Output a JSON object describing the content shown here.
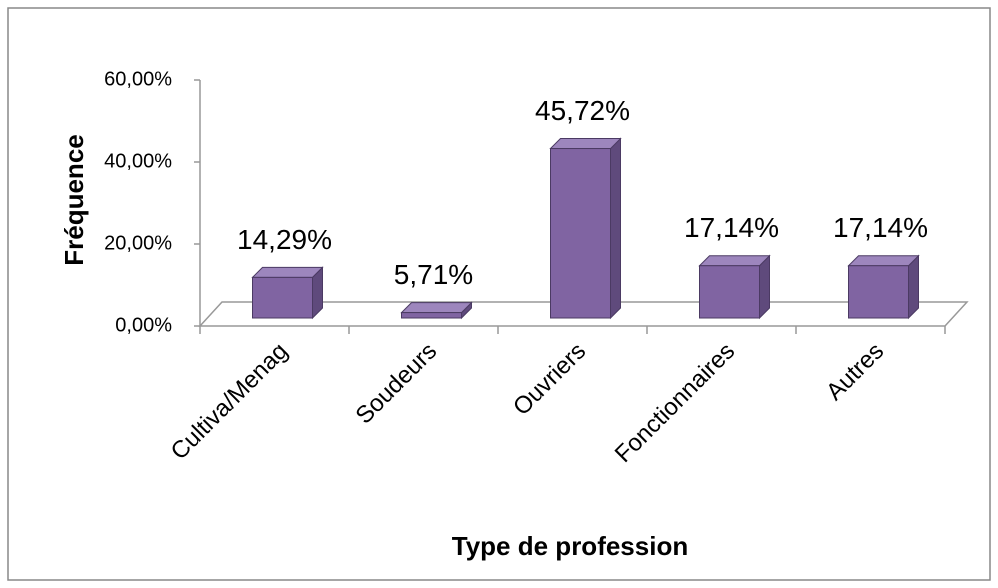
{
  "chart_data": {
    "type": "bar3d",
    "x_label": "Type de profession",
    "y_label": "Fréquence",
    "categories": [
      "Cultiva/Menag",
      "Soudeurs",
      "Ouvriers",
      "Fonctionnaires",
      "Autres"
    ],
    "values": [
      14.29,
      5.71,
      45.72,
      17.14,
      17.14
    ],
    "value_labels": [
      "14,29%",
      "5,71%",
      "45,72%",
      "17,14%",
      "17,14%"
    ],
    "color": "#8064a2",
    "ylim": [
      0,
      60
    ],
    "yticks": [
      {
        "value": 0,
        "label": "0,00%"
      },
      {
        "value": 20,
        "label": "20,00%"
      },
      {
        "value": 40,
        "label": "40,00%"
      },
      {
        "value": 60,
        "label": "60,00%"
      }
    ]
  }
}
